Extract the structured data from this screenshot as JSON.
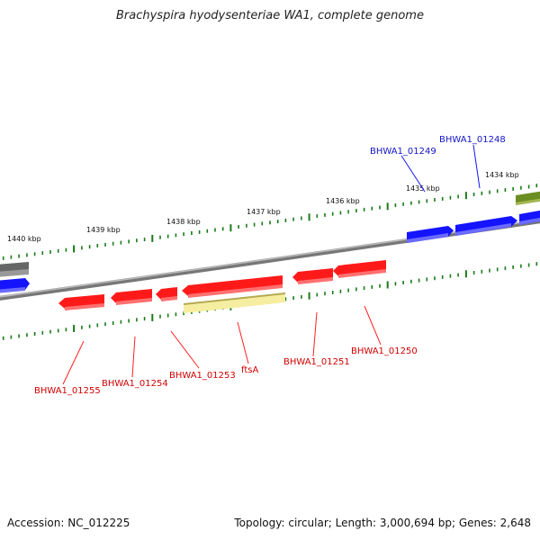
{
  "title": "Brachyspira hyodysenteriae WA1, complete genome",
  "footer": {
    "accession": "Accession: NC_012225",
    "info": "Topology: circular; Length: 3,000,694 bp; Genes: 2,648"
  },
  "colors": {
    "reverse_gene": "#ff1a1a",
    "forward_gene": "#1414ff",
    "other_gene": "#6b6b6b",
    "rna_or_pseudo": "#f5eea0",
    "top_right_gene": "#6b8e23",
    "tick": "#1a7a1a",
    "backbone": "#888888"
  },
  "ticks": [
    "1440 kbp",
    "1439 kbp",
    "1438 kbp",
    "1437 kbp",
    "1436 kbp",
    "1435 kbp",
    "1434 kbp"
  ],
  "genes": [
    {
      "label": "BHWA1_01255",
      "strand": "reverse"
    },
    {
      "label": "BHWA1_01254",
      "strand": "reverse"
    },
    {
      "label": "BHWA1_01253",
      "strand": "reverse"
    },
    {
      "label": "ftsA",
      "strand": "reverse"
    },
    {
      "label": "BHWA1_01251",
      "strand": "reverse"
    },
    {
      "label": "BHWA1_01250",
      "strand": "reverse"
    },
    {
      "label": "BHWA1_01249",
      "strand": "forward"
    },
    {
      "label": "BHWA1_01248",
      "strand": "forward"
    }
  ]
}
